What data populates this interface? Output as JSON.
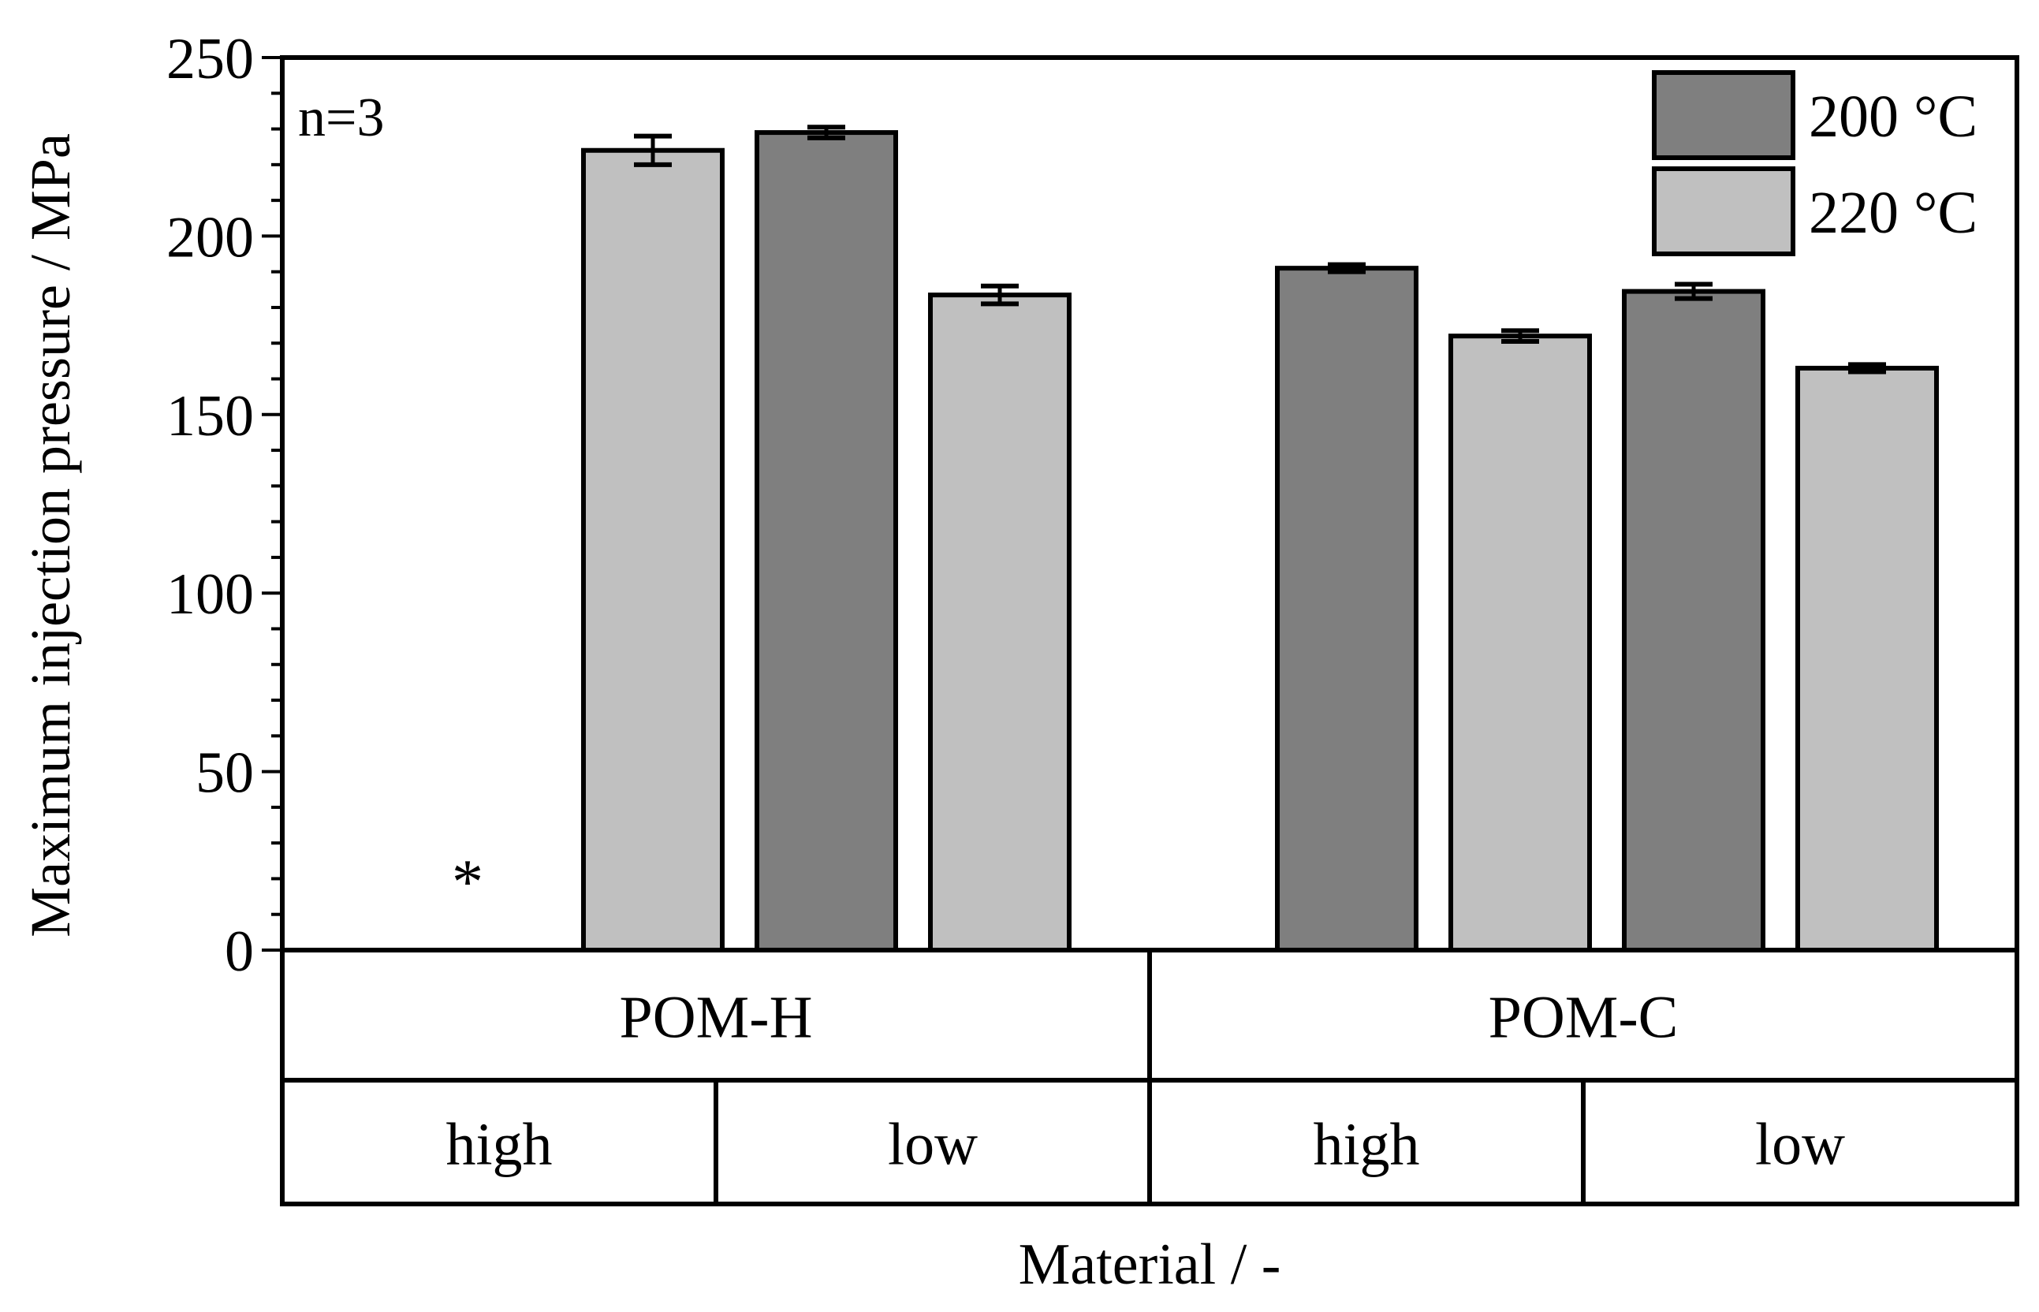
{
  "chart_data": {
    "type": "bar",
    "ylabel": "Maximum injection pressure / MPa",
    "xlabel": "Material / -",
    "ylim": [
      0,
      250
    ],
    "yticks": [
      0,
      50,
      100,
      150,
      200,
      250
    ],
    "annotation": "n=3",
    "missing_marker": "*",
    "groups": [
      {
        "material": "POM-H",
        "subgroups": [
          "high",
          "low"
        ]
      },
      {
        "material": "POM-C",
        "subgroups": [
          "high",
          "low"
        ]
      }
    ],
    "categories": [
      "POM-H high",
      "POM-H low",
      "POM-C high",
      "POM-C low"
    ],
    "series": [
      {
        "name": "200 °C",
        "color": "#7f7f7f",
        "values": [
          null,
          229,
          191,
          184.5
        ],
        "errors": [
          null,
          1.5,
          1,
          2
        ]
      },
      {
        "name": "220 °C",
        "color": "#c0c0c0",
        "values": [
          224,
          183.5,
          172,
          163
        ],
        "errors": [
          4,
          2.5,
          1.5,
          1
        ]
      }
    ]
  }
}
